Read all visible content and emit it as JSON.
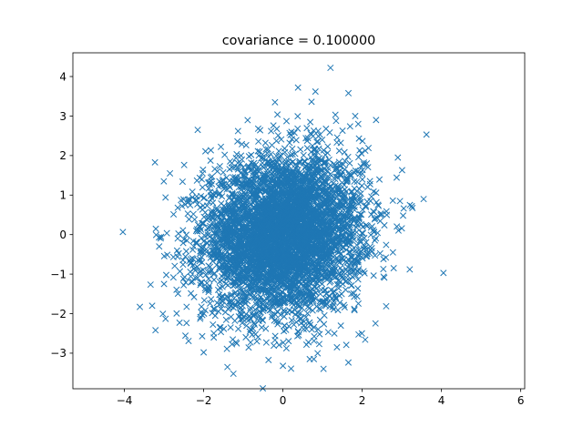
{
  "chart_data": {
    "type": "scatter",
    "title": "covariance = 0.100000",
    "xlabel": "",
    "ylabel": "",
    "xlim": [
      -5.3,
      6.1
    ],
    "ylim": [
      -3.9,
      4.6
    ],
    "x_ticks": [
      -4,
      -2,
      0,
      2,
      4,
      6
    ],
    "y_ticks": [
      -3,
      -2,
      -1,
      0,
      1,
      2,
      3,
      4
    ],
    "x_tick_labels": [
      "−4",
      "−2",
      "0",
      "2",
      "4",
      "6"
    ],
    "y_tick_labels": [
      "−3",
      "−2",
      "−1",
      "0",
      "1",
      "2",
      "3",
      "4"
    ],
    "grid": false,
    "legend": "none",
    "marker": "x",
    "color": "#1f77b4",
    "n_points": 5000,
    "distribution": {
      "mean": [
        0,
        0
      ],
      "covariance": [
        [
          1.0,
          0.1
        ],
        [
          0.1,
          1.0
        ]
      ]
    },
    "outlier_points": [
      {
        "x": 1.2,
        "y": 4.22
      },
      {
        "x": 0.38,
        "y": 3.72
      },
      {
        "x": 0.82,
        "y": 3.62
      },
      {
        "x": -0.2,
        "y": 3.35
      },
      {
        "x": 2.35,
        "y": 2.9
      },
      {
        "x": 1.9,
        "y": 2.8
      },
      {
        "x": -2.15,
        "y": 2.65
      },
      {
        "x": 3.55,
        "y": 0.9
      },
      {
        "x": 4.05,
        "y": -0.97
      },
      {
        "x": -3.3,
        "y": -1.8
      },
      {
        "x": -2.0,
        "y": -2.98
      },
      {
        "x": -1.4,
        "y": -3.35
      },
      {
        "x": -1.25,
        "y": -3.52
      },
      {
        "x": 0.0,
        "y": -3.32
      },
      {
        "x": 0.78,
        "y": -3.15
      },
      {
        "x": -2.85,
        "y": 1.55
      },
      {
        "x": 3.25,
        "y": 0.72
      },
      {
        "x": 3.2,
        "y": -0.88
      },
      {
        "x": 2.9,
        "y": 1.95
      },
      {
        "x": -3.0,
        "y": -1.25
      }
    ]
  }
}
